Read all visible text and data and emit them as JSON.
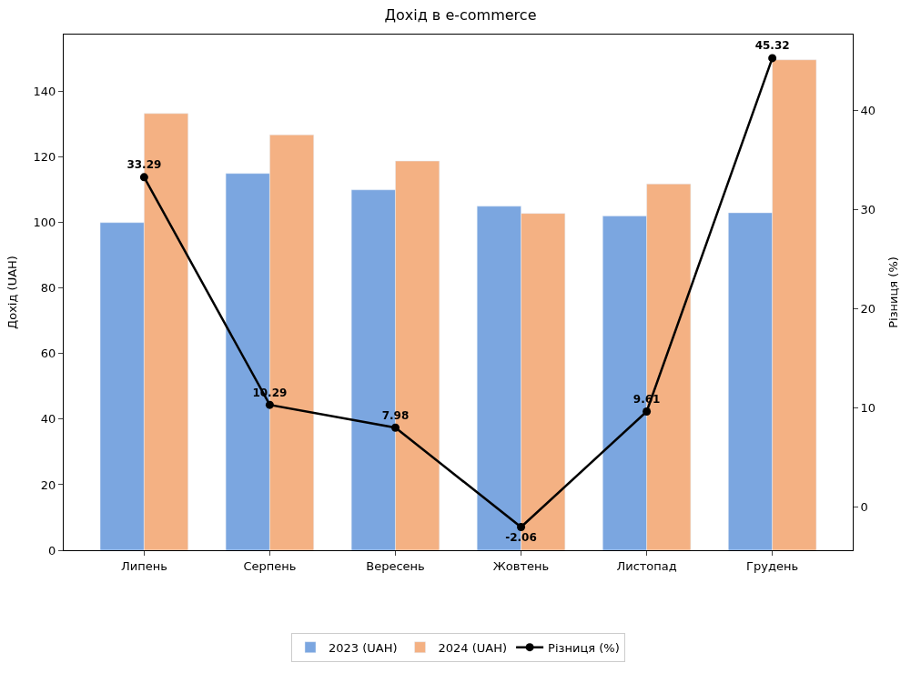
{
  "chart_data": {
    "type": "bar",
    "title": "Дохід в e-commerce",
    "ylabel": "Дохід (UAH)",
    "y2label": "Різниця (%)",
    "categories": [
      "Липень",
      "Серпень",
      "Вересень",
      "Жовтень",
      "Листопад",
      "Грудень"
    ],
    "series": [
      {
        "name": "2023 (UAH)",
        "color": "#7ba6e0",
        "values": [
          100,
          115,
          110,
          105,
          102,
          103
        ]
      },
      {
        "name": "2024 (UAH)",
        "color": "#f4b183",
        "values": [
          133.3,
          126.8,
          118.8,
          102.8,
          111.8,
          149.7
        ]
      },
      {
        "name": "Різниця (%)",
        "type": "line",
        "axis": "y2",
        "color": "#000000",
        "marker": "circle",
        "line_style": "solid",
        "values": [
          33.29,
          10.29,
          7.98,
          -2.06,
          9.61,
          45.32
        ],
        "value_labels": [
          "33.29",
          "10.29",
          "7.98",
          "-2.06",
          "9.61",
          "45.32"
        ]
      }
    ],
    "ylim": [
      0,
      157.4
    ],
    "yticks": [
      0,
      20,
      40,
      60,
      80,
      100,
      120,
      140
    ],
    "y2lim": [
      -4.4,
      47.7
    ],
    "y2ticks": [
      0,
      10,
      20,
      30,
      40
    ],
    "legend": "bottom"
  }
}
